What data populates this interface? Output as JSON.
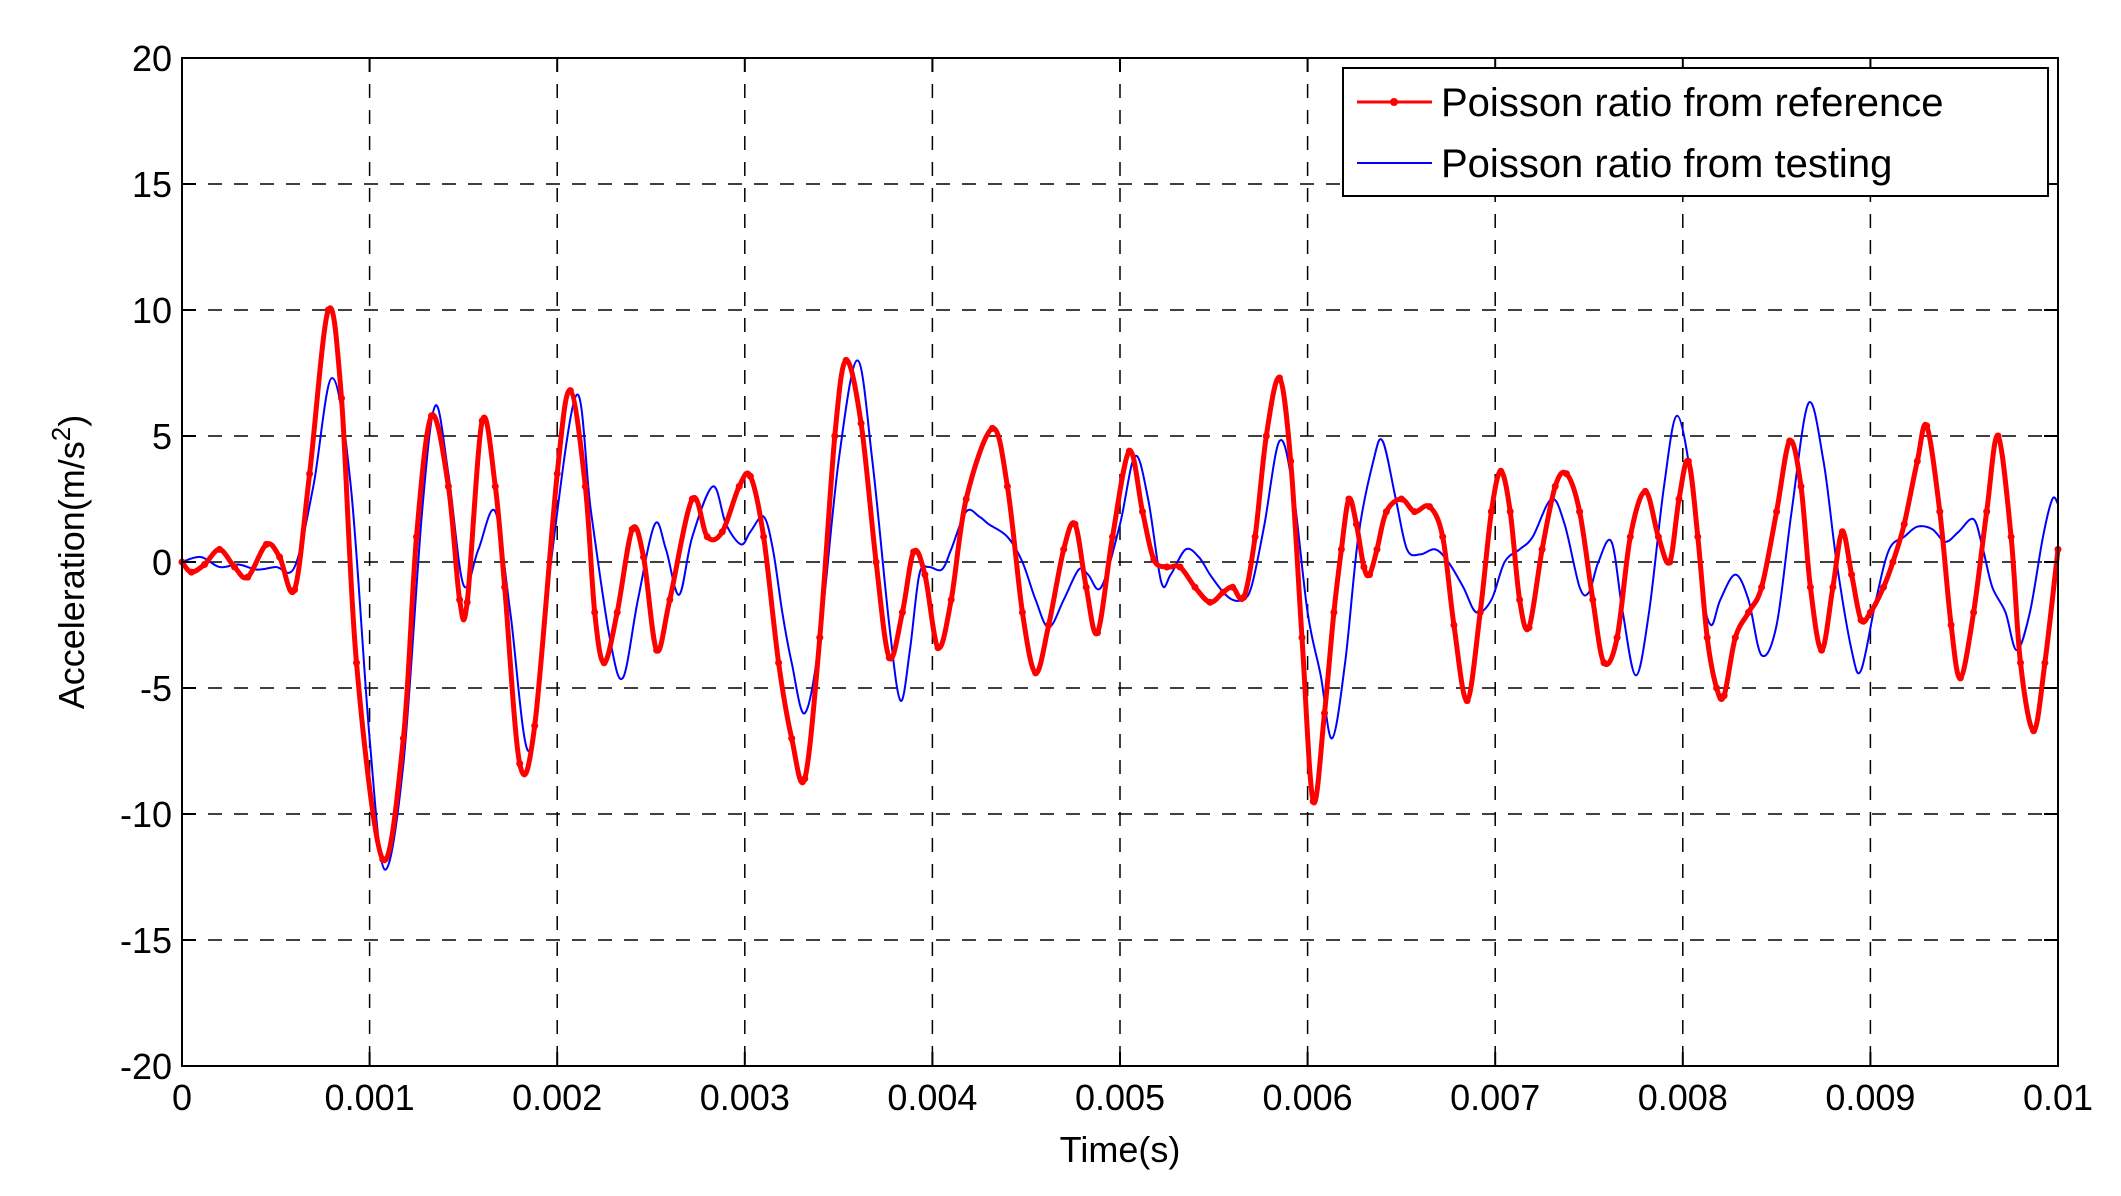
{
  "chart_data": {
    "type": "line",
    "title": "",
    "xlabel": "Time(s)",
    "ylabel": "Acceleration(m/s",
    "ylabel_superscript": "2",
    "ylabel_suffix": ")",
    "xlim": [
      0,
      0.01
    ],
    "ylim": [
      -20,
      20
    ],
    "x_ticks": [
      0,
      0.001,
      0.002,
      0.003,
      0.004,
      0.005,
      0.006,
      0.007,
      0.008,
      0.009,
      0.01
    ],
    "x_tick_labels": [
      "0",
      "0.001",
      "0.002",
      "0.003",
      "0.004",
      "0.005",
      "0.006",
      "0.007",
      "0.008",
      "0.009",
      "0.01"
    ],
    "y_ticks": [
      -20,
      -15,
      -10,
      -5,
      0,
      5,
      10,
      15,
      20
    ],
    "y_tick_labels": [
      "-20",
      "-15",
      "-10",
      "-5",
      "0",
      "5",
      "10",
      "15",
      "20"
    ],
    "grid": true,
    "legend_position": "top-right",
    "series": [
      {
        "name": "Poisson ratio from reference",
        "color": "#ff0000",
        "marker": "dot",
        "points": [
          [
            0,
            0
          ],
          [
            5e-05,
            -0.4
          ],
          [
            0.00012,
            -0.1
          ],
          [
            0.0002,
            0.5
          ],
          [
            0.00028,
            -0.2
          ],
          [
            0.00035,
            -0.6
          ],
          [
            0.00045,
            0.7
          ],
          [
            0.00052,
            0.2
          ],
          [
            0.0006,
            -1.1
          ],
          [
            0.00068,
            3.5
          ],
          [
            0.00078,
            10.0
          ],
          [
            0.00085,
            6.5
          ],
          [
            0.00093,
            -4.0
          ],
          [
            0.00107,
            -11.8
          ],
          [
            0.00118,
            -7.0
          ],
          [
            0.00125,
            1.0
          ],
          [
            0.00133,
            5.8
          ],
          [
            0.00142,
            3.0
          ],
          [
            0.00148,
            -1.5
          ],
          [
            0.00152,
            -1.6
          ],
          [
            0.0016,
            5.6
          ],
          [
            0.00167,
            3.0
          ],
          [
            0.00172,
            -1.0
          ],
          [
            0.0018,
            -8.0
          ],
          [
            0.00188,
            -6.5
          ],
          [
            0.002,
            3.5
          ],
          [
            0.00207,
            6.8
          ],
          [
            0.00215,
            3.0
          ],
          [
            0.0022,
            -2.0
          ],
          [
            0.00225,
            -4.0
          ],
          [
            0.00232,
            -2.0
          ],
          [
            0.0024,
            1.3
          ],
          [
            0.00246,
            0.2
          ],
          [
            0.00253,
            -3.5
          ],
          [
            0.0026,
            -1.5
          ],
          [
            0.00272,
            2.5
          ],
          [
            0.0028,
            1.0
          ],
          [
            0.00288,
            1.2
          ],
          [
            0.00297,
            3.0
          ],
          [
            0.00303,
            3.4
          ],
          [
            0.0031,
            1.0
          ],
          [
            0.00318,
            -4.0
          ],
          [
            0.00325,
            -7.0
          ],
          [
            0.00332,
            -8.6
          ],
          [
            0.0034,
            -3.0
          ],
          [
            0.00348,
            5.0
          ],
          [
            0.00354,
            8.0
          ],
          [
            0.00362,
            5.5
          ],
          [
            0.0037,
            0.0
          ],
          [
            0.00377,
            -3.8
          ],
          [
            0.00384,
            -2.0
          ],
          [
            0.0039,
            0.4
          ],
          [
            0.00396,
            -0.5
          ],
          [
            0.00403,
            -3.4
          ],
          [
            0.0041,
            -1.5
          ],
          [
            0.00418,
            2.5
          ],
          [
            0.00432,
            5.3
          ],
          [
            0.0044,
            3.0
          ],
          [
            0.00448,
            -2.0
          ],
          [
            0.00455,
            -4.4
          ],
          [
            0.00462,
            -2.5
          ],
          [
            0.0047,
            0.5
          ],
          [
            0.00476,
            1.5
          ],
          [
            0.00482,
            -1.0
          ],
          [
            0.00488,
            -2.8
          ],
          [
            0.00496,
            1.0
          ],
          [
            0.00505,
            4.4
          ],
          [
            0.00512,
            2.0
          ],
          [
            0.00518,
            0.1
          ],
          [
            0.00525,
            -0.2
          ],
          [
            0.00532,
            -0.2
          ],
          [
            0.0054,
            -1.0
          ],
          [
            0.00548,
            -1.6
          ],
          [
            0.00555,
            -1.2
          ],
          [
            0.0056,
            -1.0
          ],
          [
            0.00566,
            -1.4
          ],
          [
            0.00572,
            1.0
          ],
          [
            0.00578,
            5.0
          ],
          [
            0.00585,
            7.3
          ],
          [
            0.00591,
            4.0
          ],
          [
            0.00597,
            -3.0
          ],
          [
            0.00603,
            -9.5
          ],
          [
            0.00609,
            -6.0
          ],
          [
            0.00614,
            -2.0
          ],
          [
            0.00618,
            0.5
          ],
          [
            0.00622,
            2.5
          ],
          [
            0.00626,
            1.5
          ],
          [
            0.0063,
            -0.2
          ],
          [
            0.00633,
            -0.5
          ],
          [
            0.00637,
            0.5
          ],
          [
            0.00642,
            2.0
          ],
          [
            0.0065,
            2.5
          ],
          [
            0.00657,
            2.0
          ],
          [
            0.00665,
            2.2
          ],
          [
            0.00672,
            1.0
          ],
          [
            0.00678,
            -2.5
          ],
          [
            0.00685,
            -5.5
          ],
          [
            0.00692,
            -2.0
          ],
          [
            0.00698,
            2.0
          ],
          [
            0.00703,
            3.6
          ],
          [
            0.00708,
            2.0
          ],
          [
            0.00713,
            -1.5
          ],
          [
            0.00718,
            -2.6
          ],
          [
            0.00725,
            0.5
          ],
          [
            0.00732,
            3.0
          ],
          [
            0.00738,
            3.5
          ],
          [
            0.00745,
            2.0
          ],
          [
            0.00752,
            -1.5
          ],
          [
            0.00758,
            -4.0
          ],
          [
            0.00765,
            -3.0
          ],
          [
            0.00772,
            1.0
          ],
          [
            0.0078,
            2.8
          ],
          [
            0.00787,
            1.0
          ],
          [
            0.00793,
            0.0
          ],
          [
            0.00798,
            2.5
          ],
          [
            0.00803,
            4.0
          ],
          [
            0.00808,
            1.0
          ],
          [
            0.00813,
            -3.0
          ],
          [
            0.00818,
            -5.0
          ],
          [
            0.00822,
            -5.3
          ],
          [
            0.00828,
            -3.0
          ],
          [
            0.00835,
            -2.0
          ],
          [
            0.00842,
            -1.0
          ],
          [
            0.0085,
            2.0
          ],
          [
            0.00857,
            4.8
          ],
          [
            0.00863,
            3.0
          ],
          [
            0.00868,
            -1.0
          ],
          [
            0.00874,
            -3.5
          ],
          [
            0.0088,
            -1.0
          ],
          [
            0.00885,
            1.2
          ],
          [
            0.0089,
            -0.5
          ],
          [
            0.00895,
            -2.3
          ],
          [
            0.009,
            -2.0
          ],
          [
            0.00907,
            -1.0
          ],
          [
            0.00912,
            0.0
          ],
          [
            0.00918,
            1.5
          ],
          [
            0.00925,
            4.0
          ],
          [
            0.0093,
            5.4
          ],
          [
            0.00937,
            2.0
          ],
          [
            0.00943,
            -2.5
          ],
          [
            0.00948,
            -4.6
          ],
          [
            0.00955,
            -2.0
          ],
          [
            0.00962,
            2.0
          ],
          [
            0.00968,
            5.0
          ],
          [
            0.00975,
            1.0
          ],
          [
            0.0098,
            -4.0
          ],
          [
            0.00987,
            -6.7
          ],
          [
            0.00993,
            -4.0
          ],
          [
            0.01,
            0.5
          ]
        ]
      },
      {
        "name": "Poisson ratio from testing",
        "color": "#0000ff",
        "marker": "none",
        "points": [
          [
            0,
            0
          ],
          [
            0.0001,
            0.2
          ],
          [
            0.0002,
            -0.2
          ],
          [
            0.0003,
            -0.1
          ],
          [
            0.0004,
            -0.3
          ],
          [
            0.0005,
            -0.2
          ],
          [
            0.0006,
            -0.2
          ],
          [
            0.0007,
            3.0
          ],
          [
            0.0008,
            7.3
          ],
          [
            0.0009,
            3.0
          ],
          [
            0.001,
            -7.0
          ],
          [
            0.00108,
            -12.2
          ],
          [
            0.00118,
            -8.0
          ],
          [
            0.00128,
            2.0
          ],
          [
            0.00135,
            6.2
          ],
          [
            0.00142,
            3.5
          ],
          [
            0.0015,
            -0.9
          ],
          [
            0.00158,
            0.5
          ],
          [
            0.00167,
            2.0
          ],
          [
            0.00175,
            -2.0
          ],
          [
            0.00185,
            -7.5
          ],
          [
            0.00195,
            -1.0
          ],
          [
            0.0021,
            6.6
          ],
          [
            0.00218,
            2.0
          ],
          [
            0.00228,
            -3.0
          ],
          [
            0.00235,
            -4.6
          ],
          [
            0.00243,
            -1.5
          ],
          [
            0.00252,
            1.5
          ],
          [
            0.00258,
            0.5
          ],
          [
            0.00265,
            -1.3
          ],
          [
            0.00272,
            1.0
          ],
          [
            0.00283,
            3.0
          ],
          [
            0.0029,
            1.5
          ],
          [
            0.00298,
            0.7
          ],
          [
            0.00303,
            1.2
          ],
          [
            0.0031,
            1.8
          ],
          [
            0.00315,
            0.5
          ],
          [
            0.0032,
            -2.0
          ],
          [
            0.00325,
            -4.0
          ],
          [
            0.00332,
            -6.0
          ],
          [
            0.0034,
            -3.0
          ],
          [
            0.0035,
            4.0
          ],
          [
            0.0036,
            8.0
          ],
          [
            0.00368,
            4.0
          ],
          [
            0.00377,
            -2.5
          ],
          [
            0.00383,
            -5.5
          ],
          [
            0.00388,
            -3.5
          ],
          [
            0.00393,
            -0.5
          ],
          [
            0.00398,
            -0.2
          ],
          [
            0.00405,
            -0.3
          ],
          [
            0.0041,
            0.5
          ],
          [
            0.00418,
            2.0
          ],
          [
            0.00425,
            1.8
          ],
          [
            0.0043,
            1.5
          ],
          [
            0.0044,
            1.0
          ],
          [
            0.00448,
            0.0
          ],
          [
            0.00455,
            -1.5
          ],
          [
            0.00462,
            -2.6
          ],
          [
            0.0047,
            -1.5
          ],
          [
            0.00478,
            -0.3
          ],
          [
            0.00483,
            -0.5
          ],
          [
            0.0049,
            -1.0
          ],
          [
            0.005,
            1.5
          ],
          [
            0.00508,
            4.2
          ],
          [
            0.00515,
            2.5
          ],
          [
            0.00522,
            -0.8
          ],
          [
            0.00527,
            -0.5
          ],
          [
            0.00535,
            0.5
          ],
          [
            0.00542,
            0.2
          ],
          [
            0.00548,
            -0.5
          ],
          [
            0.00555,
            -1.2
          ],
          [
            0.0056,
            -1.5
          ],
          [
            0.00565,
            -1.5
          ],
          [
            0.0057,
            -1.0
          ],
          [
            0.00577,
            1.5
          ],
          [
            0.00585,
            4.8
          ],
          [
            0.00592,
            3.0
          ],
          [
            0.006,
            -2.0
          ],
          [
            0.00607,
            -4.5
          ],
          [
            0.00613,
            -7.0
          ],
          [
            0.0062,
            -4.0
          ],
          [
            0.00627,
            1.0
          ],
          [
            0.00635,
            4.0
          ],
          [
            0.0064,
            4.8
          ],
          [
            0.00647,
            2.5
          ],
          [
            0.00653,
            0.5
          ],
          [
            0.0066,
            0.3
          ],
          [
            0.00668,
            0.5
          ],
          [
            0.00675,
            0.0
          ],
          [
            0.00683,
            -1.0
          ],
          [
            0.0069,
            -2.0
          ],
          [
            0.00698,
            -1.5
          ],
          [
            0.00705,
            0.0
          ],
          [
            0.00713,
            0.5
          ],
          [
            0.0072,
            1.0
          ],
          [
            0.0073,
            2.5
          ],
          [
            0.00737,
            1.5
          ],
          [
            0.00745,
            -1.0
          ],
          [
            0.0075,
            -1.2
          ],
          [
            0.00755,
            0.0
          ],
          [
            0.00762,
            0.8
          ],
          [
            0.00768,
            -2.0
          ],
          [
            0.00775,
            -4.5
          ],
          [
            0.00782,
            -2.0
          ],
          [
            0.0079,
            3.0
          ],
          [
            0.00797,
            5.8
          ],
          [
            0.00805,
            3.0
          ],
          [
            0.0081,
            -1.0
          ],
          [
            0.00815,
            -2.5
          ],
          [
            0.0082,
            -1.5
          ],
          [
            0.00828,
            -0.5
          ],
          [
            0.00835,
            -1.5
          ],
          [
            0.00842,
            -3.7
          ],
          [
            0.0085,
            -2.5
          ],
          [
            0.00858,
            2.0
          ],
          [
            0.00867,
            6.3
          ],
          [
            0.00875,
            4.0
          ],
          [
            0.00882,
            0.0
          ],
          [
            0.0089,
            -3.5
          ],
          [
            0.00895,
            -4.3
          ],
          [
            0.00903,
            -1.5
          ],
          [
            0.0091,
            0.5
          ],
          [
            0.00918,
            1.0
          ],
          [
            0.00925,
            1.4
          ],
          [
            0.00933,
            1.3
          ],
          [
            0.0094,
            0.8
          ],
          [
            0.00947,
            1.2
          ],
          [
            0.00955,
            1.7
          ],
          [
            0.0096,
            0.5
          ],
          [
            0.00965,
            -1.0
          ],
          [
            0.00972,
            -2.0
          ],
          [
            0.00978,
            -3.5
          ],
          [
            0.00985,
            -2.0
          ],
          [
            0.00992,
            1.0
          ],
          [
            0.00997,
            2.5
          ],
          [
            0.01,
            2.3
          ]
        ]
      }
    ]
  }
}
